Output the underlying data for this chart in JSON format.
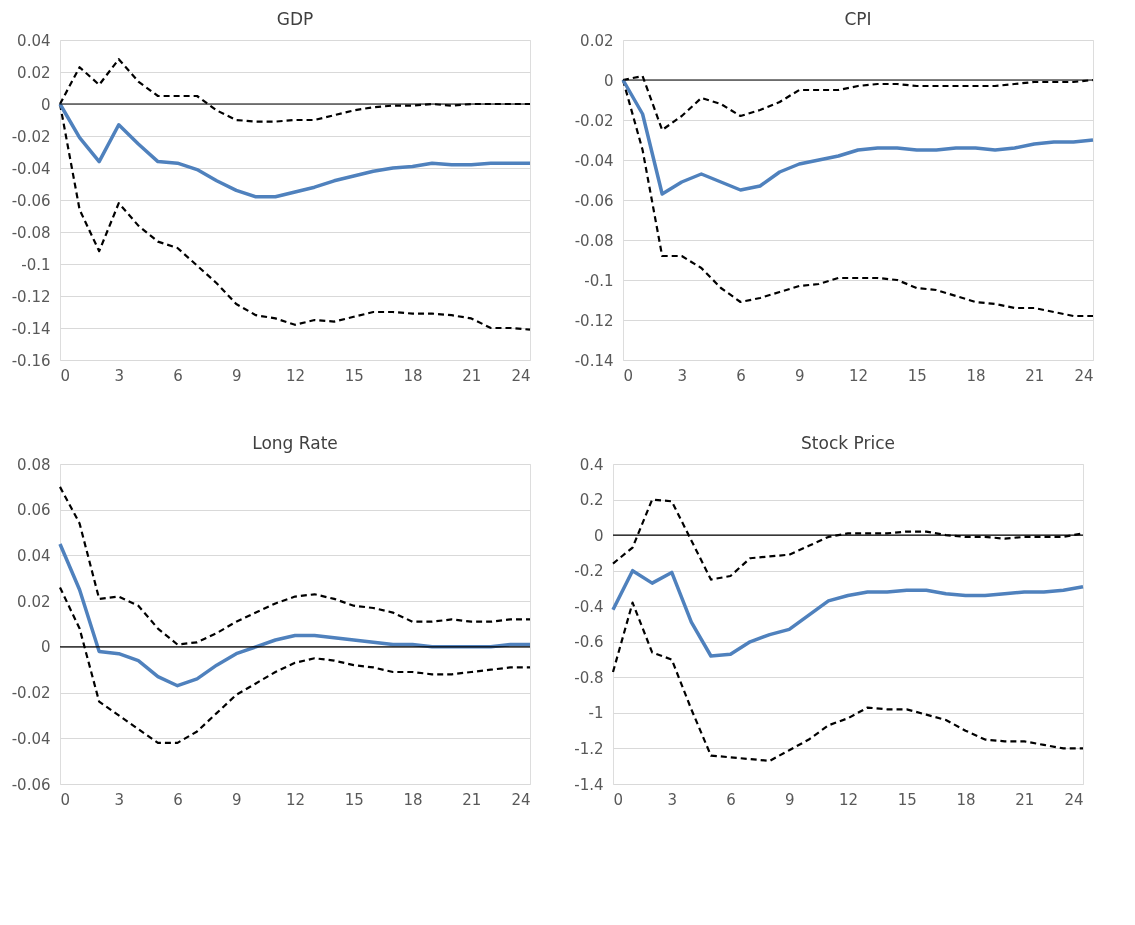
{
  "chart_data": [
    {
      "type": "line",
      "title": "GDP",
      "x": [
        0,
        1,
        2,
        3,
        4,
        5,
        6,
        7,
        8,
        9,
        10,
        11,
        12,
        13,
        14,
        15,
        16,
        17,
        18,
        19,
        20,
        21,
        22,
        23,
        24
      ],
      "xlim": [
        0,
        24
      ],
      "xticks": [
        0,
        3,
        6,
        9,
        12,
        15,
        18,
        21,
        24
      ],
      "ylim": [
        -0.16,
        0.04
      ],
      "yticks": [
        -0.16,
        -0.14,
        -0.12,
        -0.1,
        -0.08,
        -0.06,
        -0.04,
        -0.02,
        0,
        0.02,
        0.04
      ],
      "grid": "y",
      "legend": false,
      "marker": "none",
      "ref_lines": [
        {
          "axis": "y",
          "value": 0,
          "color": "#000000",
          "line_style": "solid"
        }
      ],
      "series": [
        {
          "color": "#000000",
          "line_style": "dashed",
          "values": [
            0,
            -0.066,
            -0.092,
            -0.062,
            -0.076,
            -0.086,
            -0.09,
            -0.101,
            -0.112,
            -0.125,
            -0.132,
            -0.134,
            -0.138,
            -0.135,
            -0.136,
            -0.133,
            -0.13,
            -0.13,
            -0.131,
            -0.131,
            -0.132,
            -0.134,
            -0.14,
            -0.14,
            -0.141
          ]
        },
        {
          "color": "#000000",
          "line_style": "dashed",
          "values": [
            0,
            0.023,
            0.012,
            0.028,
            0.014,
            0.005,
            0.005,
            0.005,
            -0.004,
            -0.01,
            -0.011,
            -0.011,
            -0.01,
            -0.01,
            -0.007,
            -0.004,
            -0.002,
            -0.001,
            -0.001,
            0,
            -0.001,
            0,
            0,
            0,
            0
          ]
        },
        {
          "color": "#4f81bd",
          "line_style": "solid",
          "values": [
            0,
            -0.021,
            -0.036,
            -0.013,
            -0.025,
            -0.036,
            -0.037,
            -0.041,
            -0.048,
            -0.054,
            -0.058,
            -0.058,
            -0.055,
            -0.052,
            -0.048,
            -0.045,
            -0.042,
            -0.04,
            -0.039,
            -0.037,
            -0.038,
            -0.038,
            -0.037,
            -0.037,
            -0.037
          ]
        }
      ]
    },
    {
      "type": "line",
      "title": "CPI",
      "x": [
        0,
        1,
        2,
        3,
        4,
        5,
        6,
        7,
        8,
        9,
        10,
        11,
        12,
        13,
        14,
        15,
        16,
        17,
        18,
        19,
        20,
        21,
        22,
        23,
        24
      ],
      "xlim": [
        0,
        24
      ],
      "xticks": [
        0,
        3,
        6,
        9,
        12,
        15,
        18,
        21,
        24
      ],
      "ylim": [
        -0.14,
        0.02
      ],
      "yticks": [
        -0.14,
        -0.12,
        -0.1,
        -0.08,
        -0.06,
        -0.04,
        -0.02,
        0,
        0.02
      ],
      "grid": "y",
      "legend": false,
      "marker": "none",
      "ref_lines": [
        {
          "axis": "y",
          "value": 0,
          "color": "#000000",
          "line_style": "solid"
        }
      ],
      "series": [
        {
          "color": "#000000",
          "line_style": "dashed",
          "values": [
            0,
            -0.035,
            -0.088,
            -0.088,
            -0.094,
            -0.104,
            -0.111,
            -0.109,
            -0.106,
            -0.103,
            -0.102,
            -0.099,
            -0.099,
            -0.099,
            -0.1,
            -0.104,
            -0.105,
            -0.108,
            -0.111,
            -0.112,
            -0.114,
            -0.114,
            -0.116,
            -0.118,
            -0.118
          ]
        },
        {
          "color": "#000000",
          "line_style": "dashed",
          "values": [
            0,
            0.002,
            -0.025,
            -0.018,
            -0.009,
            -0.012,
            -0.018,
            -0.015,
            -0.011,
            -0.005,
            -0.005,
            -0.005,
            -0.003,
            -0.002,
            -0.002,
            -0.003,
            -0.003,
            -0.003,
            -0.003,
            -0.003,
            -0.002,
            -0.001,
            -0.001,
            -0.001,
            0
          ]
        },
        {
          "color": "#4f81bd",
          "line_style": "solid",
          "values": [
            0,
            -0.017,
            -0.057,
            -0.051,
            -0.047,
            -0.051,
            -0.055,
            -0.053,
            -0.046,
            -0.042,
            -0.04,
            -0.038,
            -0.035,
            -0.034,
            -0.034,
            -0.035,
            -0.035,
            -0.034,
            -0.034,
            -0.035,
            -0.034,
            -0.032,
            -0.031,
            -0.031,
            -0.03
          ]
        }
      ]
    },
    {
      "type": "line",
      "title": "Long Rate",
      "x": [
        0,
        1,
        2,
        3,
        4,
        5,
        6,
        7,
        8,
        9,
        10,
        11,
        12,
        13,
        14,
        15,
        16,
        17,
        18,
        19,
        20,
        21,
        22,
        23,
        24
      ],
      "xlim": [
        0,
        24
      ],
      "xticks": [
        0,
        3,
        6,
        9,
        12,
        15,
        18,
        21,
        24
      ],
      "ylim": [
        -0.06,
        0.08
      ],
      "yticks": [
        -0.06,
        -0.04,
        -0.02,
        0,
        0.02,
        0.04,
        0.06,
        0.08
      ],
      "grid": "y",
      "legend": false,
      "marker": "none",
      "ref_lines": [
        {
          "axis": "y",
          "value": 0,
          "color": "#000000",
          "line_style": "solid"
        }
      ],
      "series": [
        {
          "color": "#000000",
          "line_style": "dashed",
          "values": [
            0.026,
            0.008,
            -0.024,
            -0.03,
            -0.036,
            -0.042,
            -0.042,
            -0.037,
            -0.029,
            -0.021,
            -0.016,
            -0.011,
            -0.007,
            -0.005,
            -0.006,
            -0.008,
            -0.009,
            -0.011,
            -0.011,
            -0.012,
            -0.012,
            -0.011,
            -0.01,
            -0.009,
            -0.009
          ]
        },
        {
          "color": "#000000",
          "line_style": "dashed",
          "values": [
            0.07,
            0.054,
            0.021,
            0.022,
            0.018,
            0.008,
            0.001,
            0.002,
            0.006,
            0.011,
            0.015,
            0.019,
            0.022,
            0.023,
            0.021,
            0.018,
            0.017,
            0.015,
            0.011,
            0.011,
            0.012,
            0.011,
            0.011,
            0.012,
            0.012
          ]
        },
        {
          "color": "#4f81bd",
          "line_style": "solid",
          "values": [
            0.045,
            0.025,
            -0.002,
            -0.003,
            -0.006,
            -0.013,
            -0.017,
            -0.014,
            -0.008,
            -0.003,
            0,
            0.003,
            0.005,
            0.005,
            0.004,
            0.003,
            0.002,
            0.001,
            0.001,
            0,
            0,
            0,
            0,
            0.001,
            0.001
          ]
        }
      ]
    },
    {
      "type": "line",
      "title": "Stock Price",
      "x": [
        0,
        1,
        2,
        3,
        4,
        5,
        6,
        7,
        8,
        9,
        10,
        11,
        12,
        13,
        14,
        15,
        16,
        17,
        18,
        19,
        20,
        21,
        22,
        23,
        24
      ],
      "xlim": [
        0,
        24
      ],
      "xticks": [
        0,
        3,
        6,
        9,
        12,
        15,
        18,
        21,
        24
      ],
      "ylim": [
        -1.4,
        0.4
      ],
      "yticks": [
        -1.4,
        -1.2,
        -1,
        -0.8,
        -0.6,
        -0.4,
        -0.2,
        0,
        0.2,
        0.4
      ],
      "grid": "y",
      "legend": false,
      "marker": "none",
      "ref_lines": [
        {
          "axis": "y",
          "value": 0,
          "color": "#000000",
          "line_style": "solid"
        }
      ],
      "series": [
        {
          "color": "#000000",
          "line_style": "dashed",
          "values": [
            -0.77,
            -0.38,
            -0.66,
            -0.7,
            -0.98,
            -1.24,
            -1.25,
            -1.26,
            -1.27,
            -1.21,
            -1.15,
            -1.07,
            -1.03,
            -0.97,
            -0.98,
            -0.98,
            -1.01,
            -1.04,
            -1.1,
            -1.15,
            -1.16,
            -1.16,
            -1.18,
            -1.2,
            -1.2
          ]
        },
        {
          "color": "#000000",
          "line_style": "dashed",
          "values": [
            -0.16,
            -0.07,
            0.2,
            0.19,
            -0.03,
            -0.25,
            -0.23,
            -0.13,
            -0.12,
            -0.11,
            -0.06,
            -0.01,
            0.01,
            0.01,
            0.01,
            0.02,
            0.02,
            0,
            -0.01,
            -0.01,
            -0.02,
            -0.01,
            -0.01,
            -0.01,
            0.01
          ]
        },
        {
          "color": "#4f81bd",
          "line_style": "solid",
          "values": [
            -0.42,
            -0.2,
            -0.27,
            -0.21,
            -0.49,
            -0.68,
            -0.67,
            -0.6,
            -0.56,
            -0.53,
            -0.45,
            -0.37,
            -0.34,
            -0.32,
            -0.32,
            -0.31,
            -0.31,
            -0.33,
            -0.34,
            -0.34,
            -0.33,
            -0.32,
            -0.32,
            -0.31,
            -0.29
          ]
        }
      ]
    }
  ]
}
